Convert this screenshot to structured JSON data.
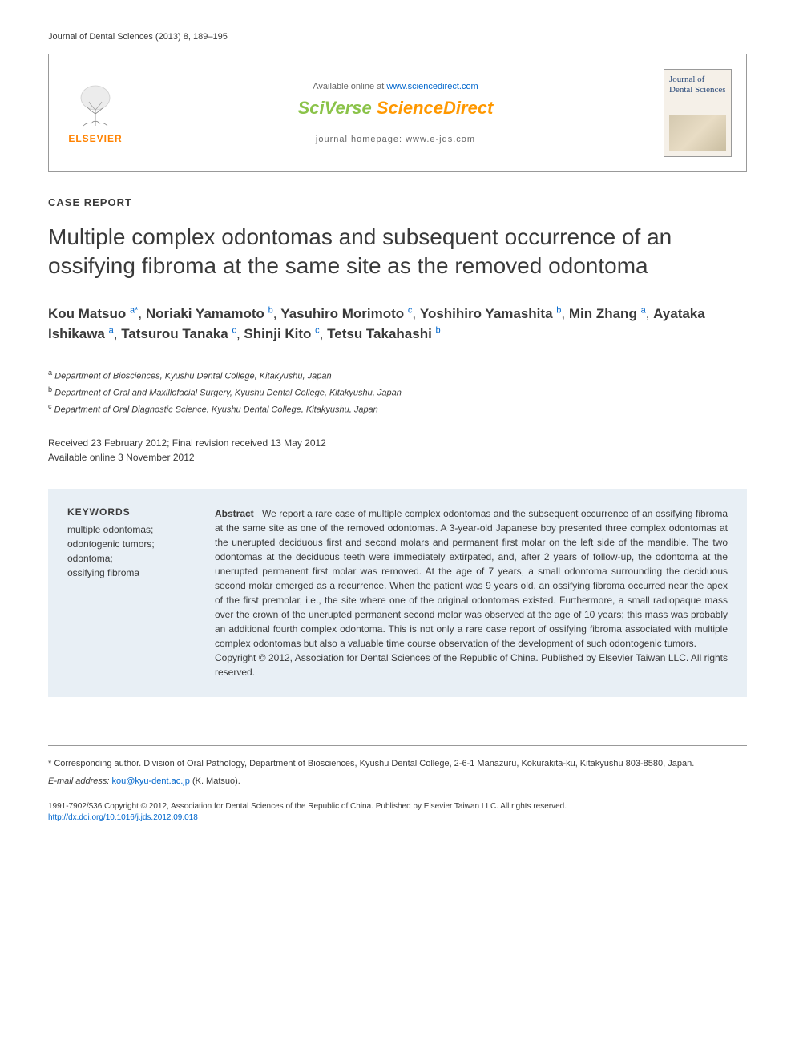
{
  "journal_ref": "Journal of Dental Sciences (2013) 8, 189–195",
  "header": {
    "elsevier_label": "ELSEVIER",
    "avail_prefix": "Available online at ",
    "avail_url": "www.sciencedirect.com",
    "sciverse_brand_a": "SciVerse ",
    "sciverse_brand_b": "ScienceDirect",
    "homepage_prefix": "journal homepage: ",
    "homepage_url": "www.e-jds.com",
    "cover_title": "Journal of Dental Sciences"
  },
  "article_type": "CASE REPORT",
  "title": "Multiple complex odontomas and subsequent occurrence of an ossifying fibroma at the same site as the removed odontoma",
  "authors": [
    {
      "name": "Kou Matsuo",
      "aff": "a",
      "corr": true
    },
    {
      "name": "Noriaki Yamamoto",
      "aff": "b"
    },
    {
      "name": "Yasuhiro Morimoto",
      "aff": "c"
    },
    {
      "name": "Yoshihiro Yamashita",
      "aff": "b"
    },
    {
      "name": "Min Zhang",
      "aff": "a"
    },
    {
      "name": "Ayataka Ishikawa",
      "aff": "a"
    },
    {
      "name": "Tatsurou Tanaka",
      "aff": "c"
    },
    {
      "name": "Shinji Kito",
      "aff": "c"
    },
    {
      "name": "Tetsu Takahashi",
      "aff": "b"
    }
  ],
  "affiliations": {
    "a": "Department of Biosciences, Kyushu Dental College, Kitakyushu, Japan",
    "b": "Department of Oral and Maxillofacial Surgery, Kyushu Dental College, Kitakyushu, Japan",
    "c": "Department of Oral Diagnostic Science, Kyushu Dental College, Kitakyushu, Japan"
  },
  "dates": {
    "received": "Received 23 February 2012; Final revision received 13 May 2012",
    "online": "Available online 3 November 2012"
  },
  "keywords_head": "KEYWORDS",
  "keywords": [
    "multiple odontomas;",
    "odontogenic tumors;",
    "odontoma;",
    "ossifying fibroma"
  ],
  "abstract": {
    "label": "Abstract",
    "body": "We report a rare case of multiple complex odontomas and the subsequent occurrence of an ossifying fibroma at the same site as one of the removed odontomas. A 3-year-old Japanese boy presented three complex odontomas at the unerupted deciduous first and second molars and permanent first molar on the left side of the mandible. The two odontomas at the deciduous teeth were immediately extirpated, and, after 2 years of follow-up, the odontoma at the unerupted permanent first molar was removed. At the age of 7 years, a small odontoma surrounding the deciduous second molar emerged as a recurrence. When the patient was 9 years old, an ossifying fibroma occurred near the apex of the first premolar, i.e., the site where one of the original odontomas existed. Furthermore, a small radiopaque mass over the crown of the unerupted permanent second molar was observed at the age of 10 years; this mass was probably an additional fourth complex odontoma. This is not only a rare case report of ossifying fibroma associated with multiple complex odontomas but also a valuable time course observation of the development of such odontogenic tumors.",
    "copyright": "Copyright © 2012, Association for Dental Sciences of the Republic of China. Published by Elsevier Taiwan LLC. All rights reserved."
  },
  "corresponding": {
    "note": "* Corresponding author. Division of Oral Pathology, Department of Biosciences, Kyushu Dental College, 2-6-1 Manazuru, Kokurakita-ku, Kitakyushu 803-8580, Japan.",
    "email_label": "E-mail address:",
    "email": "kou@kyu-dent.ac.jp",
    "email_suffix": "(K. Matsuo)."
  },
  "footer_copyright": "1991-7902/$36 Copyright © 2012, Association for Dental Sciences of the Republic of China. Published by Elsevier Taiwan LLC. All rights reserved.",
  "doi": "http://dx.doi.org/10.1016/j.jds.2012.09.018",
  "colors": {
    "text": "#3a3a3a",
    "link": "#0066cc",
    "elsevier_orange": "#ff8200",
    "sciverse_green": "#8bc34a",
    "sciverse_orange": "#ff9800",
    "abstract_bg": "#e8eff5",
    "border": "#999999"
  },
  "typography": {
    "body_fontsize": 13,
    "title_fontsize": 28,
    "authors_fontsize": 17,
    "abstract_fontsize": 12,
    "footer_fontsize": 10
  }
}
